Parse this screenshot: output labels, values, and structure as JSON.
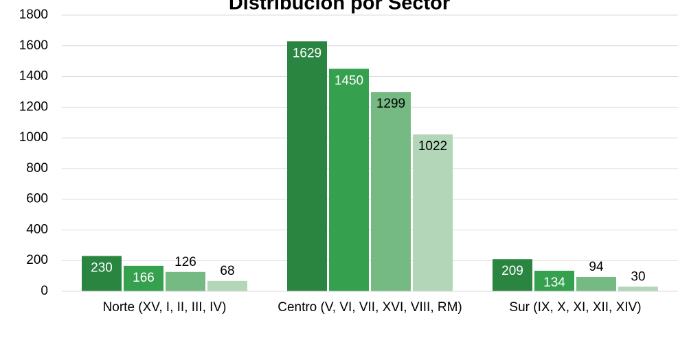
{
  "chart_data": {
    "type": "bar",
    "title": "Distribución por Sector",
    "categories": [
      "Norte (XV, I, II, III, IV)",
      "Centro (V, VI, VII, XVI, VIII, RM)",
      "Sur (IX, X, XI, XII, XIV)"
    ],
    "series": [
      {
        "color": "#2a8540",
        "values": [
          230,
          1629,
          209
        ]
      },
      {
        "color": "#35a04e",
        "values": [
          166,
          1450,
          134
        ]
      },
      {
        "color": "#75b983",
        "values": [
          126,
          1299,
          94
        ]
      },
      {
        "color": "#b3d6b9",
        "values": [
          68,
          1022,
          30
        ]
      }
    ],
    "ylim": [
      0,
      1800
    ],
    "yticks": [
      0,
      200,
      400,
      600,
      800,
      1000,
      1200,
      1400,
      1600,
      1800
    ],
    "grid": true
  }
}
